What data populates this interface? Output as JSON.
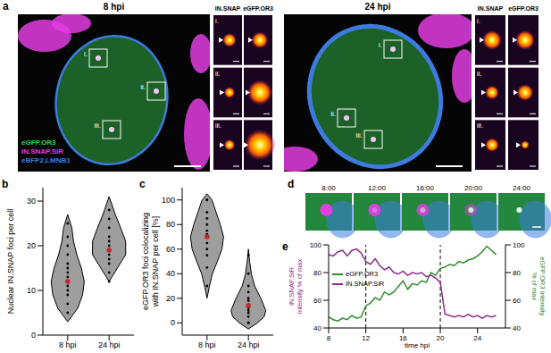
{
  "panel_labels": [
    "a",
    "b",
    "c",
    "d",
    "e"
  ],
  "image_panels": [
    {
      "title": "8 hpi",
      "columns": [
        "IN.SNAP",
        "eGFP.OR3"
      ],
      "rows": [
        "i.",
        "ii.",
        "iii."
      ]
    },
    {
      "title": "24 hpi",
      "columns": [
        "IN.SNAP",
        "eGFP.OR3"
      ],
      "rows": [
        "i.",
        "ii.",
        "iii."
      ]
    }
  ],
  "channels": [
    {
      "name": "eGFP.OR3",
      "color": "#39d353"
    },
    {
      "name": "IN.SNAP.SiR",
      "color": "#e23de2"
    },
    {
      "name": "eBFP2.LMNB1",
      "color": "#3d7be0"
    }
  ],
  "timelapse": [
    "8:00",
    "12:00",
    "16:00",
    "20:00",
    "24:00"
  ],
  "chart_data": [
    {
      "type": "violin",
      "ylabel": "Nuclear IN.SNAP foci per cell",
      "categories": [
        "8 hpi",
        "24 hpi"
      ],
      "ylim": [
        0,
        33
      ],
      "yticks": [
        0,
        10,
        20,
        30
      ],
      "density_y": [
        3,
        6,
        9,
        12,
        15,
        18,
        21,
        24,
        27,
        31
      ],
      "violins": [
        {
          "color": "#9e9e9e",
          "density": [
            0,
            0.24,
            0.36,
            0.4,
            0.33,
            0.22,
            0.14,
            0.1,
            0,
            null
          ],
          "points": [
            5,
            7,
            9,
            10,
            11,
            12,
            12,
            13,
            14,
            15,
            16,
            18,
            20,
            22,
            25
          ],
          "mean": 12,
          "error": 3
        },
        {
          "color": "#9e9e9e",
          "density": [
            null,
            null,
            null,
            0,
            0.2,
            0.4,
            0.4,
            0.28,
            0.15,
            0
          ],
          "points": [
            12,
            14,
            16,
            17,
            18,
            19,
            20,
            21,
            22,
            24,
            26,
            28
          ],
          "mean": 19,
          "error": 3
        }
      ]
    },
    {
      "type": "violin",
      "ylabel": "eGFP.OR3 foci colocalizing with IN.SNAP per cell [%]",
      "categories": [
        "8 hpi",
        "24 hpi"
      ],
      "ylim": [
        -10,
        110
      ],
      "yticks": [
        0,
        20,
        40,
        60,
        80,
        100
      ],
      "density_y": [
        -5,
        0,
        5,
        10,
        20,
        30,
        40,
        50,
        60,
        70,
        80,
        90,
        100,
        105
      ],
      "violins": [
        {
          "color": "#9e9e9e",
          "density": [
            null,
            null,
            null,
            null,
            0,
            0.06,
            0.13,
            0.25,
            0.36,
            0.4,
            0.32,
            0.22,
            0.12,
            0
          ],
          "points": [
            30,
            45,
            55,
            60,
            65,
            70,
            72,
            75,
            80,
            85,
            90,
            100,
            100
          ],
          "mean": 70,
          "error": 10
        },
        {
          "color": "#9e9e9e",
          "density": [
            0,
            0.22,
            0.38,
            0.42,
            0.3,
            0.15,
            0.07,
            0.03,
            0,
            null,
            null,
            null,
            null,
            null
          ],
          "points": [
            0,
            0,
            5,
            8,
            10,
            12,
            15,
            18,
            20,
            25,
            30,
            40,
            55
          ],
          "mean": 14,
          "error": 5
        }
      ]
    },
    {
      "type": "line",
      "xlabel": "time hpi",
      "ylabel": "IN.SNAP.SiR Intensity % of max",
      "y2label": "eGFP.OR3 Intensity % of max",
      "x": [
        8,
        8.5,
        9,
        9.5,
        10,
        10.5,
        11,
        11.5,
        12,
        12.5,
        13,
        13.5,
        14,
        14.5,
        15,
        15.5,
        16,
        16.5,
        17,
        17.5,
        18,
        18.5,
        19,
        19.5,
        20,
        20.5,
        21,
        21.5,
        22,
        22.5,
        23,
        23.5,
        24,
        24.5,
        25,
        25.5,
        26
      ],
      "xlim": [
        8,
        27
      ],
      "xticks": [
        8,
        12,
        16,
        20,
        24
      ],
      "ylim": [
        40,
        100
      ],
      "yticks": [
        40,
        60,
        80,
        100
      ],
      "y2lim": [
        40,
        100
      ],
      "y2ticks": [
        40,
        60,
        80,
        100
      ],
      "vlines": [
        12,
        20
      ],
      "legend": "left",
      "series": [
        {
          "name": "eGFP.OR3",
          "color": "#2e8b2e",
          "axis": "y2",
          "values": [
            48,
            46,
            45,
            47,
            46,
            49,
            47,
            48,
            56,
            58,
            62,
            60,
            66,
            64,
            66,
            70,
            74,
            68,
            72,
            71,
            74,
            73,
            80,
            78,
            83,
            84,
            86,
            85,
            88,
            87,
            89,
            90,
            92,
            95,
            99,
            96,
            93
          ]
        },
        {
          "name": "IN.SNAP.SiR",
          "color": "#8b2d8b",
          "values": [
            93,
            92,
            95,
            96,
            92,
            96,
            97,
            94,
            88,
            86,
            90,
            85,
            82,
            84,
            80,
            79,
            81,
            78,
            80,
            79,
            80,
            77,
            78,
            76,
            73,
            50,
            49,
            48,
            49,
            48,
            50,
            48,
            49,
            47,
            49,
            48,
            49
          ]
        }
      ]
    }
  ]
}
